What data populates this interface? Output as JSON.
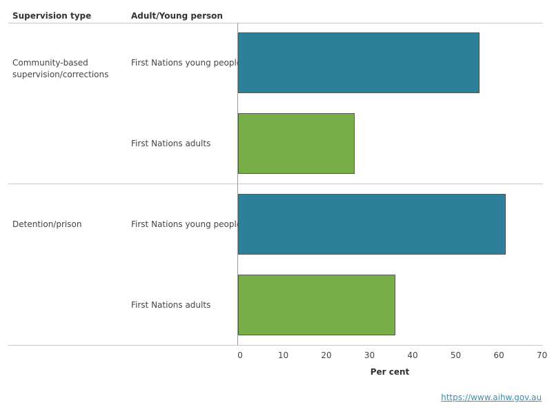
{
  "headers": {
    "col1": "Supervision type",
    "col2": "Adult/Young person"
  },
  "chart_data": {
    "type": "bar",
    "orientation": "horizontal",
    "groups": [
      {
        "label": "Community-based supervision/corrections",
        "bars": [
          {
            "label": "First Nations young people",
            "value": 56,
            "color": "#2e7f99"
          },
          {
            "label": "First Nations adults",
            "value": 27,
            "color": "#78ae47"
          }
        ]
      },
      {
        "label": "Detention/prison",
        "bars": [
          {
            "label": "First Nations young people",
            "value": 62,
            "color": "#2e7f99"
          },
          {
            "label": "First Nations adults",
            "value": 36.5,
            "color": "#78ae47"
          }
        ]
      }
    ],
    "xlabel": "Per cent",
    "xlim": [
      0,
      70
    ],
    "xticks": [
      0,
      10,
      20,
      30,
      40,
      50,
      60,
      70
    ],
    "grid": false
  },
  "source": "https://www.aihw.gov.au"
}
